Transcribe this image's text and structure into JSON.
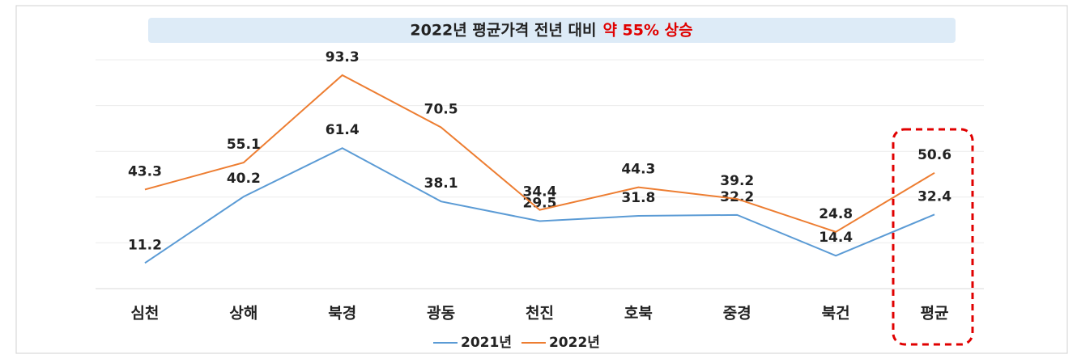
{
  "chart_data": {
    "type": "line",
    "title": "2022년 평균가격 전년 대비",
    "title_highlight": "약 55% 상승",
    "categories": [
      "심천",
      "상해",
      "북경",
      "광동",
      "천진",
      "호북",
      "중경",
      "북건",
      "평균"
    ],
    "series": [
      {
        "name": "2021년",
        "color": "#5b9bd5",
        "values": [
          11.2,
          40.2,
          61.4,
          38.1,
          29.5,
          31.8,
          32.2,
          14.4,
          32.4
        ]
      },
      {
        "name": "2022년",
        "color": "#ed7d31",
        "values": [
          43.3,
          55.1,
          93.3,
          70.5,
          34.4,
          44.3,
          39.2,
          24.8,
          50.6
        ]
      }
    ],
    "ylim": [
      0,
      100
    ],
    "yticks": [
      0,
      20,
      40,
      60,
      80,
      100
    ],
    "grid": true,
    "legend": "bottom"
  }
}
